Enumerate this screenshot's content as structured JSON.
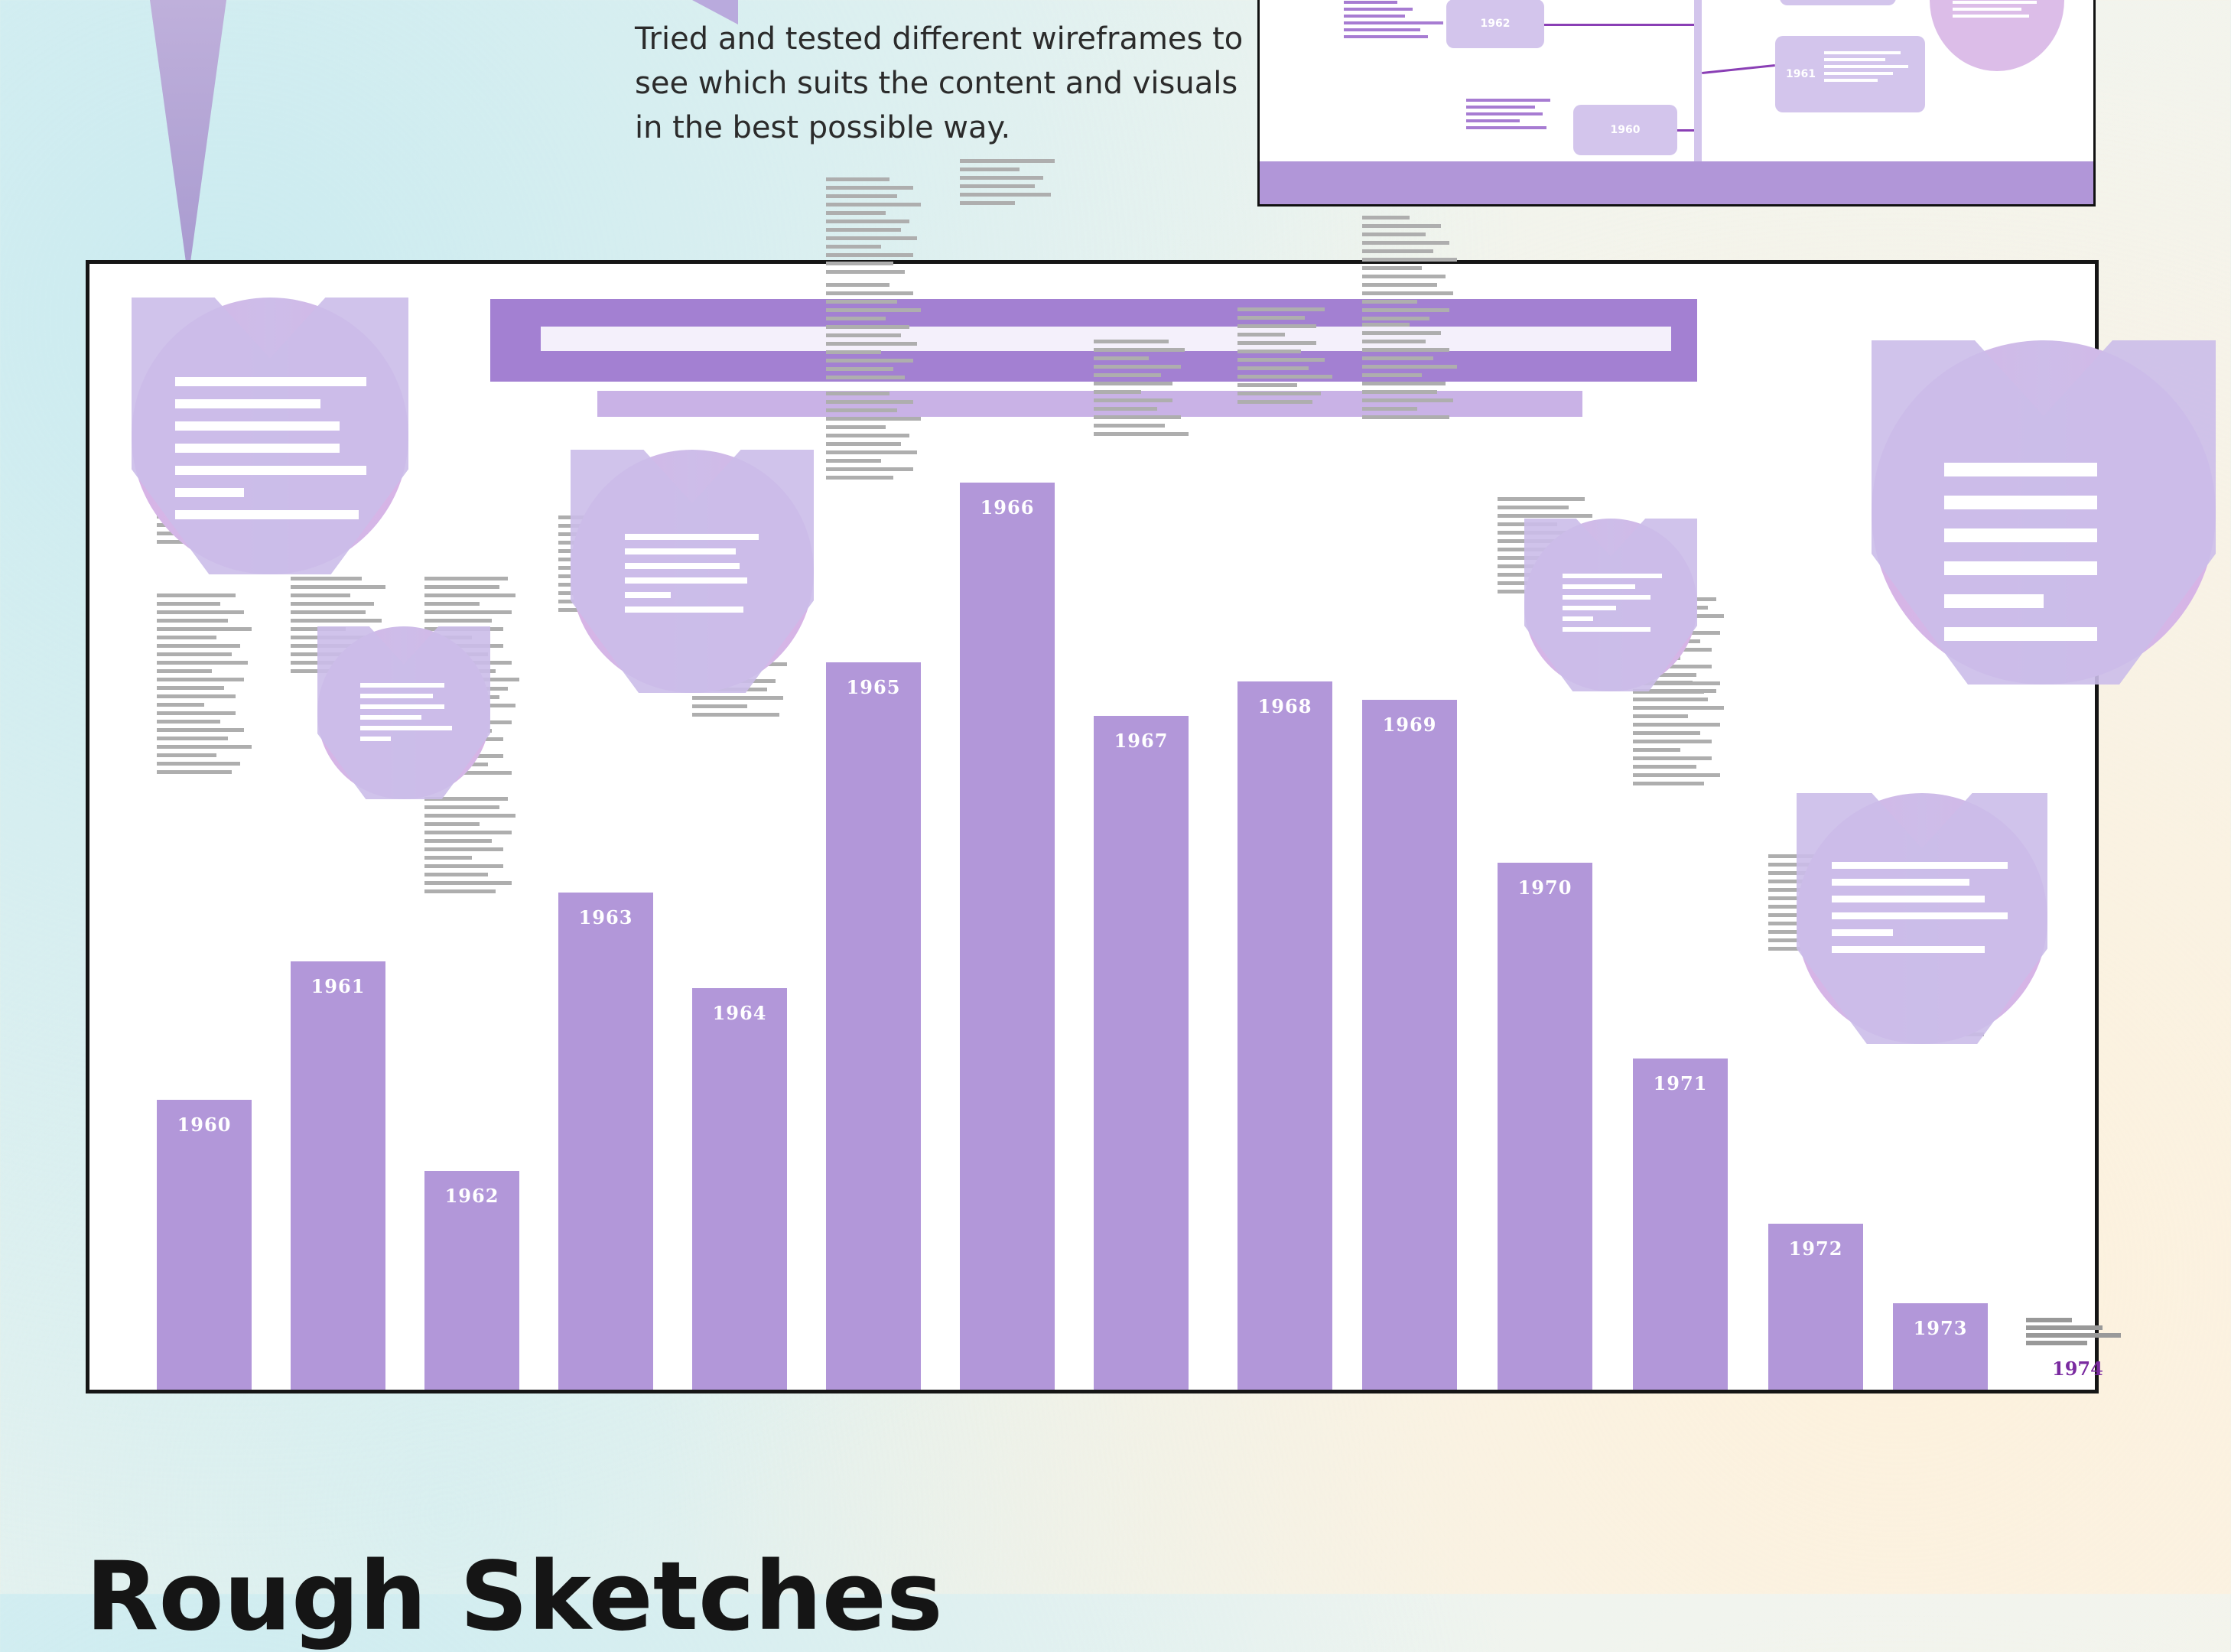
{
  "caption": "Tried and tested different wireframes to see which suits the content and visuals in the best possible way.",
  "thumbnail": {
    "nodes": [
      "1962",
      "1961",
      "1960"
    ]
  },
  "infographic": {
    "years": [
      "1960",
      "1961",
      "1962",
      "1963",
      "1964",
      "1965",
      "1966",
      "1967",
      "1968",
      "1969",
      "1970",
      "1971",
      "1972",
      "1973",
      "1974"
    ],
    "colors": {
      "bar": "#b297d9",
      "title_bar": "#a380d2",
      "circle": "#d8b3e6",
      "final_year_label": "#7a2aa0"
    }
  },
  "bottom_heading": "Rough Sketches"
}
